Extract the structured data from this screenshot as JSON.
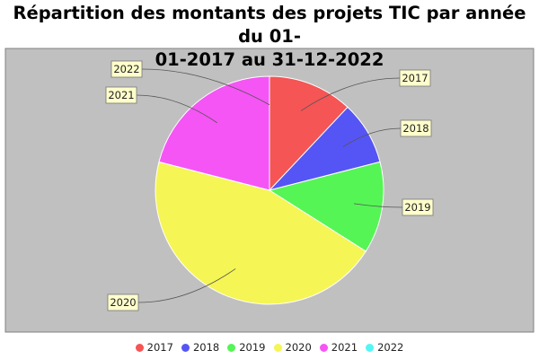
{
  "chart_data": {
    "type": "pie",
    "title_line1": "Répartition des montants des projets TIC par année du 01-",
    "title_line2": "01-2017 au 31-12-2022",
    "categories": [
      "2017",
      "2018",
      "2019",
      "2020",
      "2021",
      "2022"
    ],
    "values": [
      12,
      9,
      13,
      45,
      21,
      0
    ],
    "colors": [
      "#f55555",
      "#5555f5",
      "#55f555",
      "#f5f555",
      "#f555f5",
      "#55f5f5"
    ],
    "plot_background": "#c0c0c0",
    "legend_position": "bottom"
  }
}
